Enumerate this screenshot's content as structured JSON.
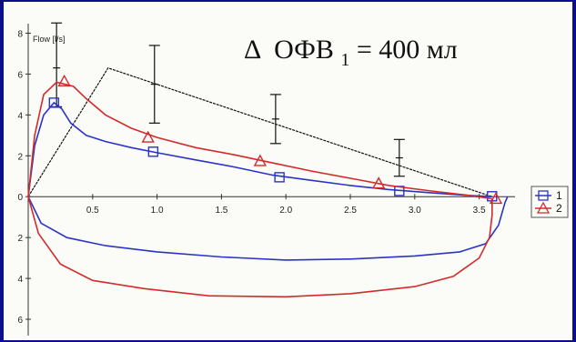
{
  "colors": {
    "background": "#0b0d8a",
    "plot_background": "#fbfbf7",
    "series_1": "#2a34c8",
    "series_2": "#d42a2a",
    "reference": "#111111"
  },
  "chart_data": {
    "type": "line",
    "title": "",
    "annotation": {
      "delta": "Δ",
      "main": "ОФВ",
      "subscript": "1",
      "rest": " = 400 мл"
    },
    "ylabel": "Flow [l/s]",
    "xlabel": "",
    "xlim": [
      0,
      3.75
    ],
    "ylim": [
      -6.8,
      8.2
    ],
    "y_axis_shows_absolute_labels": true,
    "x_ticks": [
      {
        "value": 0.5,
        "label": "0.5"
      },
      {
        "value": 1.0,
        "label": "1.0"
      },
      {
        "value": 1.5,
        "label": "1.5"
      },
      {
        "value": 2.0,
        "label": "2.0"
      },
      {
        "value": 2.5,
        "label": "2.5"
      },
      {
        "value": 3.0,
        "label": "3.0"
      },
      {
        "value": 3.5,
        "label": "3.5"
      }
    ],
    "y_ticks": [
      {
        "value": 8,
        "label": "8"
      },
      {
        "value": 6,
        "label": "6"
      },
      {
        "value": 4,
        "label": "4"
      },
      {
        "value": 2,
        "label": "2"
      },
      {
        "value": 0,
        "label": "0"
      },
      {
        "value": -2,
        "label": "2"
      },
      {
        "value": -4,
        "label": "4"
      },
      {
        "value": -6,
        "label": "6"
      }
    ],
    "legend": {
      "placement": "right",
      "entries": [
        {
          "label": "1",
          "marker": "square",
          "series": "series_1"
        },
        {
          "label": "2",
          "marker": "triangle",
          "series": "series_2"
        }
      ]
    },
    "series": [
      {
        "name": "1",
        "marker": "square",
        "expiratory": [
          [
            0,
            0
          ],
          [
            0.05,
            2.5
          ],
          [
            0.12,
            4.0
          ],
          [
            0.2,
            4.6
          ],
          [
            0.26,
            4.3
          ],
          [
            0.33,
            3.6
          ],
          [
            0.45,
            3.0
          ],
          [
            0.6,
            2.7
          ],
          [
            0.8,
            2.4
          ],
          [
            1.0,
            2.15
          ],
          [
            1.3,
            1.8
          ],
          [
            1.6,
            1.45
          ],
          [
            1.9,
            1.05
          ],
          [
            2.2,
            0.8
          ],
          [
            2.5,
            0.55
          ],
          [
            2.8,
            0.35
          ],
          [
            3.1,
            0.2
          ],
          [
            3.4,
            0.07
          ],
          [
            3.6,
            0.0
          ]
        ],
        "inspiratory": [
          [
            0,
            0
          ],
          [
            0.1,
            -1.3
          ],
          [
            0.3,
            -2.0
          ],
          [
            0.6,
            -2.4
          ],
          [
            1.0,
            -2.7
          ],
          [
            1.5,
            -2.95
          ],
          [
            2.0,
            -3.1
          ],
          [
            2.5,
            -3.05
          ],
          [
            3.0,
            -2.9
          ],
          [
            3.35,
            -2.7
          ],
          [
            3.55,
            -2.3
          ],
          [
            3.65,
            -1.4
          ],
          [
            3.7,
            -0.3
          ],
          [
            3.72,
            0.0
          ]
        ],
        "markers": [
          [
            0.2,
            4.6
          ],
          [
            0.97,
            2.2
          ],
          [
            1.95,
            0.95
          ],
          [
            2.88,
            0.28
          ],
          [
            3.6,
            0.02
          ]
        ]
      },
      {
        "name": "2",
        "marker": "triangle",
        "expiratory": [
          [
            0,
            0
          ],
          [
            0.05,
            3.0
          ],
          [
            0.12,
            5.0
          ],
          [
            0.22,
            5.6
          ],
          [
            0.35,
            5.4
          ],
          [
            0.45,
            4.8
          ],
          [
            0.6,
            4.0
          ],
          [
            0.8,
            3.35
          ],
          [
            1.0,
            2.9
          ],
          [
            1.3,
            2.4
          ],
          [
            1.6,
            2.05
          ],
          [
            1.9,
            1.65
          ],
          [
            2.2,
            1.25
          ],
          [
            2.5,
            0.9
          ],
          [
            2.8,
            0.55
          ],
          [
            3.1,
            0.3
          ],
          [
            3.4,
            0.08
          ],
          [
            3.6,
            -0.1
          ]
        ],
        "inspiratory": [
          [
            0,
            0
          ],
          [
            0.08,
            -1.8
          ],
          [
            0.25,
            -3.3
          ],
          [
            0.5,
            -4.1
          ],
          [
            0.9,
            -4.5
          ],
          [
            1.4,
            -4.85
          ],
          [
            2.0,
            -4.9
          ],
          [
            2.5,
            -4.75
          ],
          [
            3.0,
            -4.4
          ],
          [
            3.3,
            -3.9
          ],
          [
            3.5,
            -3.0
          ],
          [
            3.58,
            -2.0
          ],
          [
            3.6,
            -0.9
          ],
          [
            3.6,
            -0.1
          ]
        ],
        "markers": [
          [
            0.28,
            5.65
          ],
          [
            0.93,
            2.9
          ],
          [
            1.8,
            1.75
          ],
          [
            2.72,
            0.65
          ],
          [
            3.63,
            -0.1
          ]
        ]
      }
    ],
    "reference_line": [
      [
        0,
        0
      ],
      [
        0.62,
        6.3
      ],
      [
        3.6,
        0.0
      ]
    ],
    "error_bars": [
      {
        "x": 0.22,
        "center": 6.3,
        "low": 4.4,
        "high": 8.5
      },
      {
        "x": 0.98,
        "center": 5.5,
        "low": 3.6,
        "high": 7.4
      },
      {
        "x": 1.92,
        "center": 3.8,
        "low": 2.6,
        "high": 5.0
      },
      {
        "x": 2.88,
        "center": 1.9,
        "low": 1.0,
        "high": 2.8
      }
    ]
  }
}
